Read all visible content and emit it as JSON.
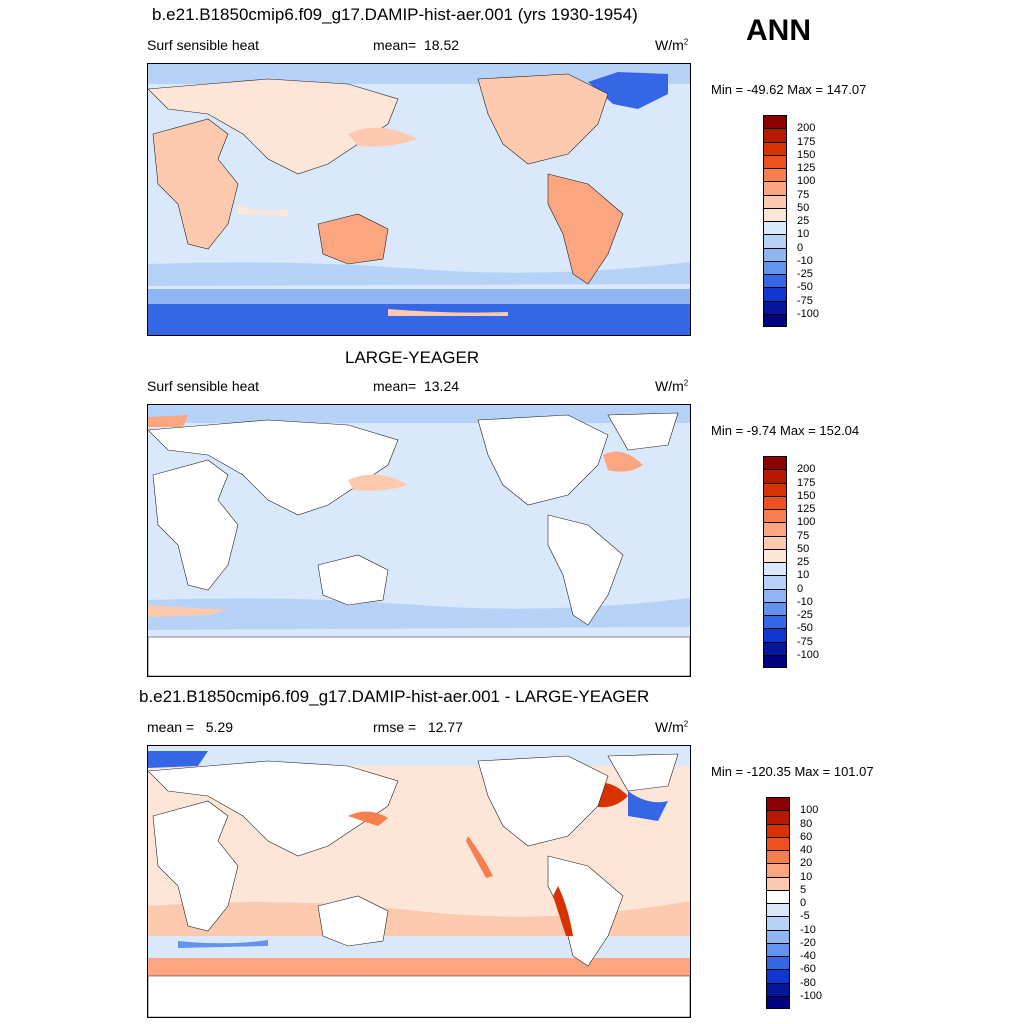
{
  "season": "ANN",
  "panels": [
    {
      "title": "b.e21.B1850cmip6.f09_g17.DAMIP-hist-aer.001 (yrs 1930-1954)",
      "variable": "Surf sensible heat",
      "stat_label": "mean=",
      "stat_value": "18.52",
      "units": "W/m",
      "units_sup": "2",
      "minmax": "Min = -49.62 Max = 147.07",
      "levels": [
        "200",
        "175",
        "150",
        "125",
        "100",
        "75",
        "50",
        "25",
        "10",
        "0",
        "-10",
        "-25",
        "-50",
        "-75",
        "-100"
      ],
      "colors": [
        "#8b0000",
        "#b51a00",
        "#d83200",
        "#ee5022",
        "#f77e4f",
        "#fba581",
        "#fdcab0",
        "#fde6d8",
        "#d9e9fb",
        "#b7d2f7",
        "#8fb5f2",
        "#6493ee",
        "#3566e6",
        "#1136cf",
        "#06169c",
        "#000080"
      ]
    },
    {
      "title": "LARGE-YEAGER",
      "variable": "Surf sensible heat",
      "stat_label": "mean=",
      "stat_value": "13.24",
      "units": "W/m",
      "units_sup": "2",
      "minmax": "Min =  -9.74 Max = 152.04",
      "levels": [
        "200",
        "175",
        "150",
        "125",
        "100",
        "75",
        "50",
        "25",
        "10",
        "0",
        "-10",
        "-25",
        "-50",
        "-75",
        "-100"
      ],
      "colors": [
        "#8b0000",
        "#b51a00",
        "#d83200",
        "#ee5022",
        "#f77e4f",
        "#fba581",
        "#fdcab0",
        "#fde6d8",
        "#d9e9fb",
        "#b7d2f7",
        "#8fb5f2",
        "#6493ee",
        "#3566e6",
        "#1136cf",
        "#06169c",
        "#000080"
      ]
    },
    {
      "title": "b.e21.B1850cmip6.f09_g17.DAMIP-hist-aer.001 - LARGE-YEAGER",
      "stat_label": "mean =",
      "stat_value": "5.29",
      "rmse_label": "rmse =",
      "rmse_value": "12.77",
      "units": "W/m",
      "units_sup": "2",
      "minmax": "Min = -120.35 Max = 101.07",
      "levels": [
        "100",
        "80",
        "60",
        "40",
        "20",
        "10",
        "5",
        "0",
        "-5",
        "-10",
        "-20",
        "-40",
        "-60",
        "-80",
        "-100"
      ],
      "colors": [
        "#8b0000",
        "#b51a00",
        "#d83200",
        "#ee5022",
        "#f77e4f",
        "#fba581",
        "#fdcab0",
        "#ffffff",
        "#d9e9fb",
        "#b7d2f7",
        "#8fb5f2",
        "#6493ee",
        "#3566e6",
        "#1136cf",
        "#06169c",
        "#000080"
      ]
    }
  ],
  "chart_data": [
    {
      "type": "heatmap",
      "title": "b.e21.B1850cmip6.f09_g17.DAMIP-hist-aer.001 (yrs 1930-1954)",
      "variable": "Surf sensible heat",
      "units": "W/m2",
      "mean": 18.52,
      "min": -49.62,
      "max": 147.07,
      "levels": [
        -100,
        -75,
        -50,
        -25,
        -10,
        0,
        10,
        25,
        50,
        75,
        100,
        125,
        150,
        175,
        200
      ]
    },
    {
      "type": "heatmap",
      "title": "LARGE-YEAGER",
      "variable": "Surf sensible heat",
      "units": "W/m2",
      "mean": 13.24,
      "min": -9.74,
      "max": 152.04,
      "levels": [
        -100,
        -75,
        -50,
        -25,
        -10,
        0,
        10,
        25,
        50,
        75,
        100,
        125,
        150,
        175,
        200
      ]
    },
    {
      "type": "heatmap",
      "title": "b.e21.B1850cmip6.f09_g17.DAMIP-hist-aer.001 - LARGE-YEAGER",
      "units": "W/m2",
      "mean": 5.29,
      "rmse": 12.77,
      "min": -120.35,
      "max": 101.07,
      "levels": [
        -100,
        -80,
        -60,
        -40,
        -20,
        -10,
        -5,
        0,
        5,
        10,
        20,
        40,
        60,
        80,
        100
      ]
    }
  ]
}
